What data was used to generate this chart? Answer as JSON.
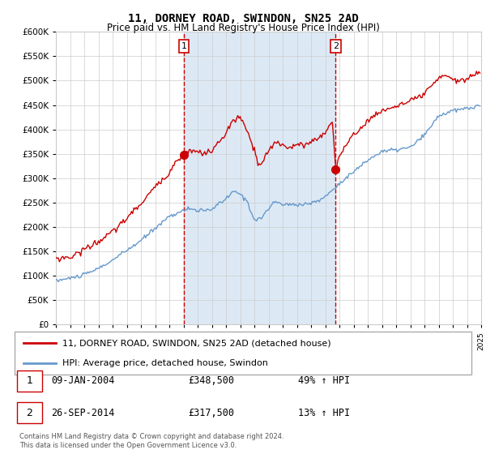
{
  "title": "11, DORNEY ROAD, SWINDON, SN25 2AD",
  "subtitle": "Price paid vs. HM Land Registry's House Price Index (HPI)",
  "sale1_price": 348500,
  "sale2_price": 317500,
  "legend_line1": "11, DORNEY ROAD, SWINDON, SN25 2AD (detached house)",
  "legend_line2": "HPI: Average price, detached house, Swindon",
  "row1_num": "1",
  "row1_date": "09-JAN-2004",
  "row1_price": "£348,500",
  "row1_pct": "49% ↑ HPI",
  "row2_num": "2",
  "row2_date": "26-SEP-2014",
  "row2_price": "£317,500",
  "row2_pct": "13% ↑ HPI",
  "footer": "Contains HM Land Registry data © Crown copyright and database right 2024.\nThis data is licensed under the Open Government Licence v3.0.",
  "red_color": "#cc0000",
  "blue_color": "#6699cc",
  "shade_color": "#dce9f5",
  "grid_color": "#cccccc",
  "bg_color": "#ffffff",
  "ylim": [
    0,
    600000
  ],
  "yticks": [
    0,
    50000,
    100000,
    150000,
    200000,
    250000,
    300000,
    350000,
    400000,
    450000,
    500000,
    550000,
    600000
  ],
  "xstart": 1995,
  "xend": 2025,
  "sale1_dec": 2004.03,
  "sale2_dec": 2014.74
}
